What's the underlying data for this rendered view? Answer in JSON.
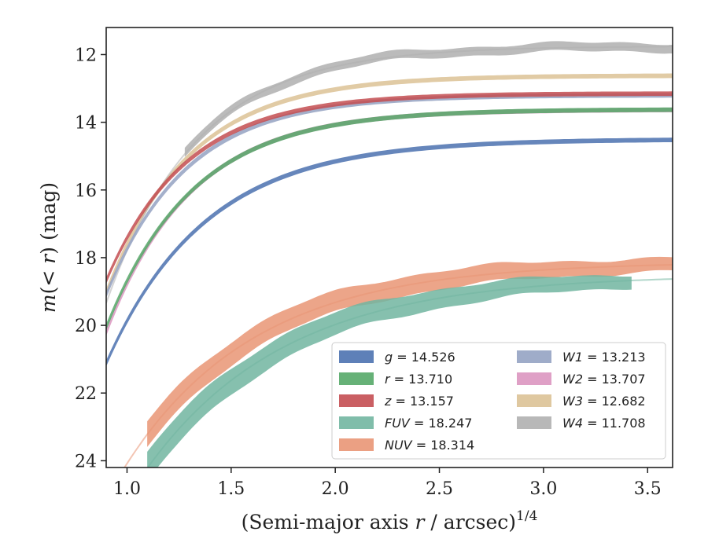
{
  "chart_data": {
    "type": "line",
    "xlabel": "(Semi-major axis r / arcsec)^{1/4}",
    "ylabel": "m(< r) (mag)",
    "xlim": [
      0.9,
      3.62
    ],
    "ylim": [
      24.2,
      11.2
    ],
    "y_inverted": true,
    "xticks": [
      "1.0",
      "1.5",
      "2.0",
      "2.5",
      "3.0",
      "3.5"
    ],
    "yticks": [
      "12",
      "14",
      "16",
      "18",
      "20",
      "22",
      "24"
    ],
    "grid": false,
    "legend_position": "lower-right",
    "series": [
      {
        "name": "g",
        "legend_value": "14.526",
        "color": "#4c72b0",
        "asym": 14.5,
        "m0": 20.85,
        "x0": 0.92,
        "k": 2.1,
        "x_start": 0.9,
        "x_end": 3.62,
        "band": 0.1,
        "tail": false
      },
      {
        "name": "r",
        "legend_value": "13.710",
        "color": "#55a868",
        "asym": 13.62,
        "m0": 19.75,
        "x0": 0.92,
        "k": 2.4,
        "x_start": 0.9,
        "x_end": 3.62,
        "band": 0.1,
        "tail": false
      },
      {
        "name": "z",
        "legend_value": "13.157",
        "color": "#c44e52",
        "asym": 13.15,
        "m0": 18.4,
        "x0": 0.92,
        "k": 2.6,
        "x_start": 0.9,
        "x_end": 3.62,
        "band": 0.1,
        "tail": false
      },
      {
        "name": "FUV",
        "legend_value": "18.247",
        "color": "#72b6a1",
        "asym": 18.5,
        "m0": 24.2,
        "x0": 1.1,
        "k": 1.5,
        "x_start": 1.1,
        "x_end": 3.42,
        "band": 0.8,
        "band_end": 0.35,
        "tail": true
      },
      {
        "name": "NUV",
        "legend_value": "18.314",
        "color": "#e99675",
        "asym": 18.12,
        "m0": 23.2,
        "x0": 1.1,
        "k": 1.6,
        "x_start": 1.1,
        "x_end": 3.62,
        "band": 0.7,
        "band_end": 0.35,
        "tail": true
      },
      {
        "name": "W1",
        "legend_value": "13.213",
        "color": "#95a3c3",
        "asym": 13.2,
        "m0": 18.8,
        "x0": 0.92,
        "k": 2.6,
        "x_start": 0.9,
        "x_end": 3.62,
        "band": 0.1,
        "tail": false
      },
      {
        "name": "W2",
        "legend_value": "13.707",
        "color": "#db96c0",
        "asym": 13.63,
        "m0": 19.9,
        "x0": 0.92,
        "k": 2.45,
        "x_start": 0.9,
        "x_end": 3.62,
        "band": 0.1,
        "tail": false
      },
      {
        "name": "W3",
        "legend_value": "12.682",
        "color": "#dcc296",
        "asym": 12.62,
        "m0": 18.7,
        "x0": 0.92,
        "k": 2.5,
        "x_start": 0.9,
        "x_end": 3.62,
        "band": 0.1,
        "tail": false
      },
      {
        "name": "W4",
        "legend_value": "11.708",
        "color": "#b0b0b0",
        "asym": 11.75,
        "m0": 19.0,
        "x0": 0.92,
        "k": 2.3,
        "x_start": 1.28,
        "x_end": 3.62,
        "band": 0.22,
        "tail": true
      }
    ]
  }
}
